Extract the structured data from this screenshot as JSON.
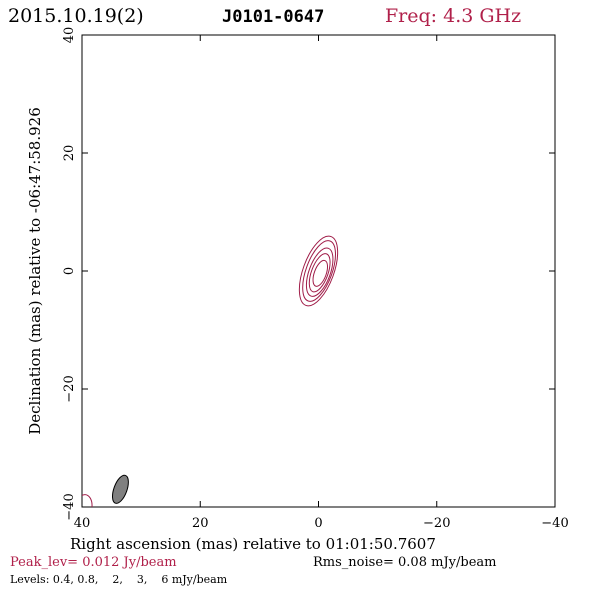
{
  "header": {
    "date": "2015.10.19(2)",
    "source": "J0101-0647",
    "freq": "Freq: 4.3 GHz"
  },
  "footer": {
    "peak": "Peak_lev=  0.012 Jy/beam",
    "rms": "Rms_noise= 0.08 mJy/beam",
    "levels": "Levels: 0.4, 0.8,    2,    3,    6 mJy/beam"
  },
  "colors": {
    "accent": "#b0204a",
    "contour": "#a01c48",
    "beam_fill": "#808080",
    "axis": "#000000"
  },
  "chart_data": {
    "type": "contour",
    "xlabel": "Right ascension (mas) relative to 01:01:50.7607",
    "ylabel": "Declination (mas) relative to -06:47:58.926",
    "xlim": [
      40,
      -40
    ],
    "ylim": [
      -40,
      40
    ],
    "xticks": [
      40,
      20,
      0,
      -20,
      -40
    ],
    "yticks": [
      -40,
      -20,
      0,
      20,
      40
    ],
    "xtick_labels": [
      "40",
      "20",
      "0",
      "−20",
      "−40"
    ],
    "ytick_labels": [
      "−40",
      "−20",
      "0",
      "20",
      "40"
    ],
    "contour_levels_mJy": [
      0.4,
      0.8,
      2,
      3,
      6
    ],
    "contours": [
      {
        "level": 0.4,
        "cx": 0.0,
        "cy": 0.0,
        "major": 6.2,
        "minor": 2.6,
        "pa": 20
      },
      {
        "level": 0.8,
        "cx": -0.1,
        "cy": 0.0,
        "major": 5.4,
        "minor": 2.2,
        "pa": 20
      },
      {
        "level": 2,
        "cx": -0.2,
        "cy": -0.2,
        "major": 4.3,
        "minor": 1.8,
        "pa": 20
      },
      {
        "level": 3,
        "cx": -0.2,
        "cy": -0.3,
        "major": 3.4,
        "minor": 1.4,
        "pa": 20
      },
      {
        "level": 6,
        "cx": -0.3,
        "cy": -0.4,
        "major": 2.3,
        "minor": 1.0,
        "pa": 20
      }
    ],
    "beam": {
      "cx": 33.5,
      "cy": -37.0,
      "major": 2.5,
      "minor": 1.1,
      "pa": 20
    },
    "partial_contour": {
      "cx": 39.5,
      "cy": -39.7,
      "major": 1.8,
      "minor": 1.2,
      "pa": 0
    },
    "grid": false
  }
}
